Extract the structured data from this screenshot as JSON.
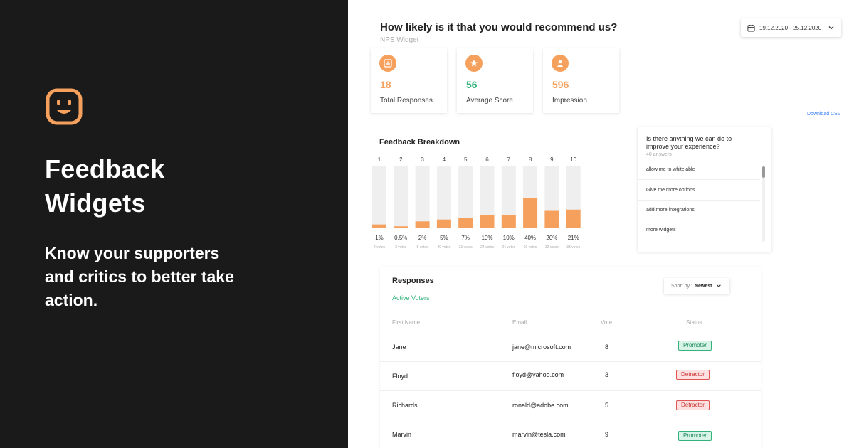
{
  "promo": {
    "title_line1": "Feedback",
    "title_line2": "Widgets",
    "subtitle": "Know your supporters and critics to better take action."
  },
  "colors": {
    "accent": "#f5a05c",
    "green": "#34b27a",
    "red": "#e05555",
    "dark_bg": "#1a1a1a"
  },
  "widget": {
    "question": "How likely is it that you would recommend us?",
    "name": "NPS Widget",
    "date_range": "19.12.2020 - 25.12.2020"
  },
  "stats": [
    {
      "icon": "bar-chart-icon",
      "value": "18",
      "label": "Total Responses",
      "color": "#f5a05c"
    },
    {
      "icon": "star-icon",
      "value": "56",
      "label": "Average Score",
      "color": "#34b27a"
    },
    {
      "icon": "user-icon",
      "value": "596",
      "label": "Impression",
      "color": "#f5a05c"
    }
  ],
  "download_label": "Download CSV",
  "chart_data": {
    "type": "bar",
    "title": "Feedback Breakdown",
    "categories": [
      "1",
      "2",
      "3",
      "4",
      "5",
      "6",
      "7",
      "8",
      "9",
      "10"
    ],
    "percent_labels": [
      "1%",
      "0.5%",
      "2%",
      "5%",
      "7%",
      "10%",
      "10%",
      "40%",
      "20%",
      "21%"
    ],
    "values": [
      5,
      2,
      10,
      13,
      16,
      20,
      20,
      48,
      27,
      29
    ],
    "vote_labels": [
      "4 votes",
      "2 votes",
      "8 votes",
      "20 votes",
      "31 votes",
      "24 votes",
      "24 votes",
      "60 votes",
      "32 votes",
      "33 votes"
    ],
    "ylim": [
      0,
      100
    ]
  },
  "improve": {
    "question": "Is there anything we can do to improve your experience?",
    "count": "40 answers",
    "answers": [
      "allow me to whitelable",
      "Give me more options",
      "add more integrations",
      "more widgets"
    ]
  },
  "responses": {
    "title": "Responses",
    "subtitle": "Active Voters",
    "sort_prefix": "Short by :",
    "sort_value": "Newest",
    "headers": [
      "First Name",
      "Email",
      "Vote",
      "Status"
    ],
    "rows": [
      {
        "name": "Jane",
        "email": "jane@microsoft.com",
        "vote": "8",
        "status": "Promoter",
        "type": "promoter"
      },
      {
        "name": "Floyd",
        "email": "floyd@yahoo.com",
        "vote": "3",
        "status": "Detractor",
        "type": "detractor"
      },
      {
        "name": "Richards",
        "email": "ronald@adobe.com",
        "vote": "5",
        "status": "Detractor",
        "type": "detractor"
      },
      {
        "name": "Marvin",
        "email": "marvin@tesla.com",
        "vote": "9",
        "status": "Promoter",
        "type": "promoter"
      }
    ]
  }
}
